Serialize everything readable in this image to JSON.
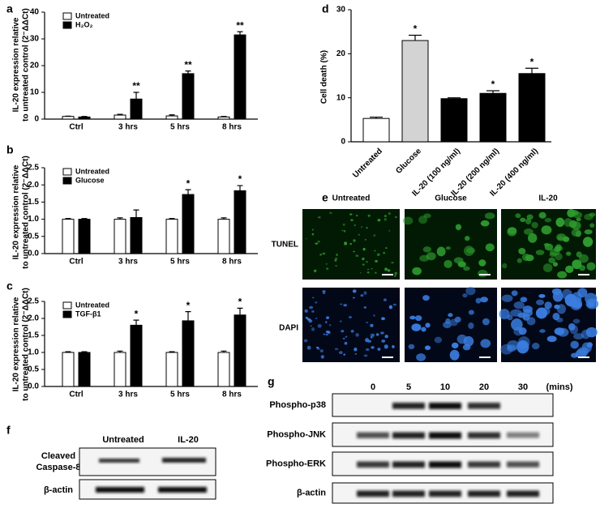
{
  "chart_data": [
    {
      "type": "bar",
      "panel_label": "a",
      "y_label": [
        "IL-20 expression relative",
        "to untreated control (2⁻ΔΔCt)"
      ],
      "categories": [
        "Ctrl",
        "3 hrs",
        "5 hrs",
        "8 hrs"
      ],
      "series": [
        {
          "name": "Untreated",
          "color": "#ffffff",
          "values": [
            1,
            1.5,
            1.2,
            0.8
          ],
          "errors": [
            0.1,
            0.3,
            0.4,
            0.2
          ],
          "annotations": [
            null,
            null,
            null,
            null
          ]
        },
        {
          "name": "H₂O₂",
          "color": "#000000",
          "values": [
            0.8,
            7.5,
            17,
            31.5
          ],
          "errors": [
            0.2,
            2.5,
            1,
            1.2
          ],
          "annotations": [
            null,
            "**",
            "**",
            "**"
          ]
        }
      ],
      "ylim": [
        0,
        40
      ],
      "yticks": [
        0,
        10,
        20,
        30,
        40
      ],
      "legend": "upper left"
    },
    {
      "type": "bar",
      "panel_label": "b",
      "y_label": [
        "IL-20 expression relative",
        "to untreated control (2⁻ΔΔCt)"
      ],
      "categories": [
        "Ctrl",
        "3 hrs",
        "5 hrs",
        "8 hrs"
      ],
      "series": [
        {
          "name": "Untreated",
          "color": "#ffffff",
          "values": [
            1.0,
            1.0,
            1.0,
            1.0
          ],
          "errors": [
            0.02,
            0.04,
            0.02,
            0.04
          ],
          "annotations": [
            null,
            null,
            null,
            null
          ]
        },
        {
          "name": "Glucose",
          "color": "#000000",
          "values": [
            1.0,
            1.05,
            1.72,
            1.83
          ],
          "errors": [
            0.02,
            0.22,
            0.14,
            0.15
          ],
          "annotations": [
            null,
            null,
            "*",
            "*"
          ]
        }
      ],
      "ylim": [
        0,
        2.5
      ],
      "yticks": [
        {
          "value": 0,
          "label": "0.0"
        },
        {
          "value": 0.5,
          "label": "0.5"
        },
        {
          "value": 1,
          "label": "1.0"
        },
        {
          "value": 1.5,
          "label": "1.5"
        },
        {
          "value": 2,
          "label": "2.0"
        },
        {
          "value": 2.5,
          "label": "2.5"
        }
      ],
      "legend": "upper left"
    },
    {
      "type": "bar",
      "panel_label": "c",
      "y_label": [
        "IL-20 expression relative",
        "to untreated control (2⁻ΔΔCt)"
      ],
      "categories": [
        "Ctrl",
        "3 hrs",
        "5 hrs",
        "8 hrs"
      ],
      "series": [
        {
          "name": "Untreated",
          "color": "#ffffff",
          "values": [
            1.0,
            1.0,
            1.0,
            1.0
          ],
          "errors": [
            0.02,
            0.04,
            0.02,
            0.04
          ],
          "annotations": [
            null,
            null,
            null,
            null
          ]
        },
        {
          "name": "TGF-β1",
          "color": "#000000",
          "values": [
            1.0,
            1.8,
            1.93,
            2.1
          ],
          "errors": [
            0.02,
            0.15,
            0.27,
            0.2
          ],
          "annotations": [
            null,
            "*",
            "*",
            "*"
          ]
        }
      ],
      "ylim": [
        0,
        2.5
      ],
      "yticks": [
        {
          "value": 0,
          "label": "0.0"
        },
        {
          "value": 0.5,
          "label": "0.5"
        },
        {
          "value": 1,
          "label": "1.0"
        },
        {
          "value": 1.5,
          "label": "1.5"
        },
        {
          "value": 2,
          "label": "2.0"
        },
        {
          "value": 2.5,
          "label": "2.5"
        }
      ],
      "legend": "upper left"
    },
    {
      "type": "bar",
      "panel_label": "d",
      "y_label": [
        "Cell death (%)"
      ],
      "categories": [
        "Untreated",
        "Glucose",
        "IL-20 (100 ng/ml)",
        "IL-20 (200 ng/ml)",
        "IL-20 (400 ng/ml)"
      ],
      "values": [
        5.3,
        23,
        9.8,
        11,
        15.5
      ],
      "errors": [
        0.3,
        1.2,
        0.2,
        0.6,
        1.2
      ],
      "colors": [
        "#ffffff",
        "#d3d3d3",
        "#000000",
        "#000000",
        "#000000"
      ],
      "annotations": [
        null,
        "*",
        null,
        "*",
        "*"
      ],
      "ylim": [
        0,
        30
      ],
      "yticks": [
        0,
        10,
        20,
        30
      ]
    }
  ],
  "panel_e": {
    "panel_label": "e",
    "columns": [
      "Untreated",
      "Glucose",
      "IL-20"
    ],
    "rows": [
      "TUNEL",
      "DAPI"
    ]
  },
  "panel_f": {
    "panel_label": "f",
    "columns": [
      "Untreated",
      "IL-20"
    ],
    "rows": [
      [
        "Cleaved",
        "Caspase-8"
      ],
      [
        "β-actin"
      ]
    ]
  },
  "panel_g": {
    "panel_label": "g",
    "times": [
      0,
      5,
      10,
      20,
      30
    ],
    "unit": "(mins)",
    "rows": [
      "Phospho-p38",
      "Phospho-JNK",
      "Phospho-ERK",
      "β-actin"
    ]
  }
}
